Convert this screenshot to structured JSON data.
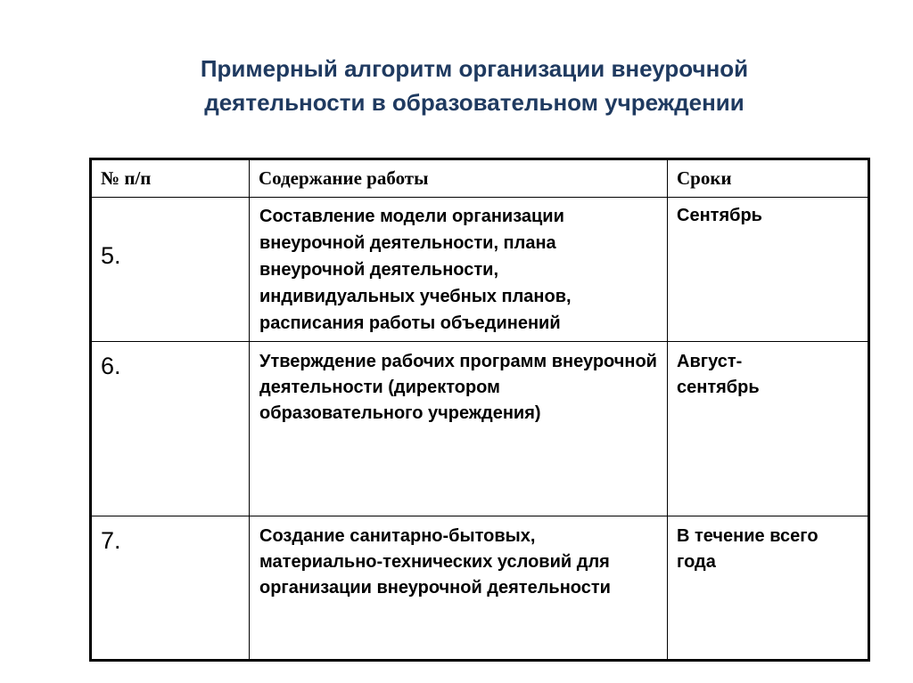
{
  "title": {
    "line1": "Примерный алгоритм организации внеурочной",
    "line2": "деятельности в образовательном учреждении"
  },
  "table": {
    "headers": [
      "№ п/п",
      "Содержание работы",
      "Сроки"
    ],
    "rows": [
      {
        "num": "5.",
        "content": "Составление модели организации внеурочной деятельности, плана внеурочной деятельности, индивидуальных учебных планов, расписания работы объединений",
        "term": "Сентябрь"
      },
      {
        "num": "6.",
        "content": "Утверждение рабочих программ внеурочной деятельности (директором образовательного учреждения)",
        "term": "Август-сентябрь"
      },
      {
        "num": "7.",
        "content": "Создание санитарно-бытовых, материально-технических условий для организации внеурочной деятельности",
        "term": "В течение всего года"
      }
    ]
  }
}
